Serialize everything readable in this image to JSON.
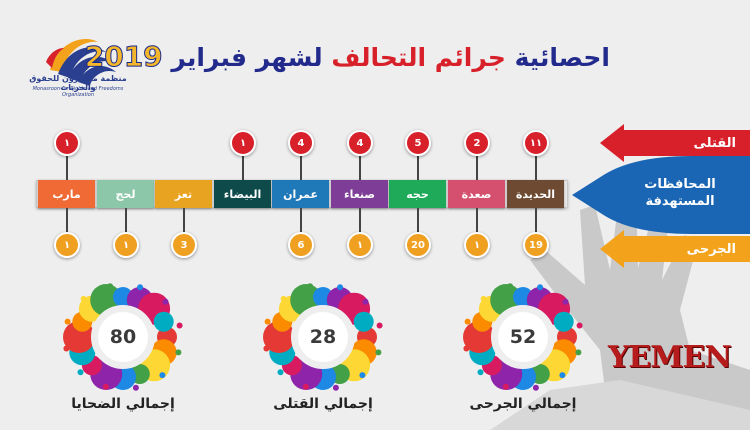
{
  "logo": {
    "arabic": "منظمة مناصرون للحقوق والحريات",
    "english": "Monasroon for Rights and Freedoms Organization"
  },
  "title": {
    "part1": "احصائية",
    "part2": "جرائم التحالف",
    "part3": "لشهر فبراير",
    "year": "2019"
  },
  "labels": {
    "killed": "القتلى",
    "targeted_l1": "المحافظات",
    "targeted_l2": "المستهدفة",
    "injured": "الجرحى"
  },
  "governorates": [
    {
      "name": "مارب",
      "killed": "١",
      "injured": "١",
      "color": "#f06a35"
    },
    {
      "name": "لحج",
      "killed": "",
      "injured": "١",
      "color": "#8cc7a9"
    },
    {
      "name": "تعز",
      "killed": "",
      "injured": "3",
      "color": "#e8a321"
    },
    {
      "name": "البيضاء",
      "killed": "١",
      "injured": "",
      "color": "#0f4a4a"
    },
    {
      "name": "عمران",
      "killed": "4",
      "injured": "6",
      "color": "#1f78b8"
    },
    {
      "name": "صنعاء",
      "killed": "4",
      "injured": "١",
      "color": "#7e3e98"
    },
    {
      "name": "حجه",
      "killed": "5",
      "injured": "20",
      "color": "#1faa5a"
    },
    {
      "name": "صعدة",
      "killed": "2",
      "injured": "١",
      "color": "#d4506e"
    },
    {
      "name": "الحديدة",
      "killed": "١١",
      "injured": "19",
      "color": "#6e4a32"
    }
  ],
  "totals": [
    {
      "value": "80",
      "caption": "إجمالي الضحايا"
    },
    {
      "value": "28",
      "caption": "إجمالي القتلى"
    },
    {
      "value": "52",
      "caption": "إجمالي الجرحى"
    }
  ],
  "watermark": "YEMEN"
}
